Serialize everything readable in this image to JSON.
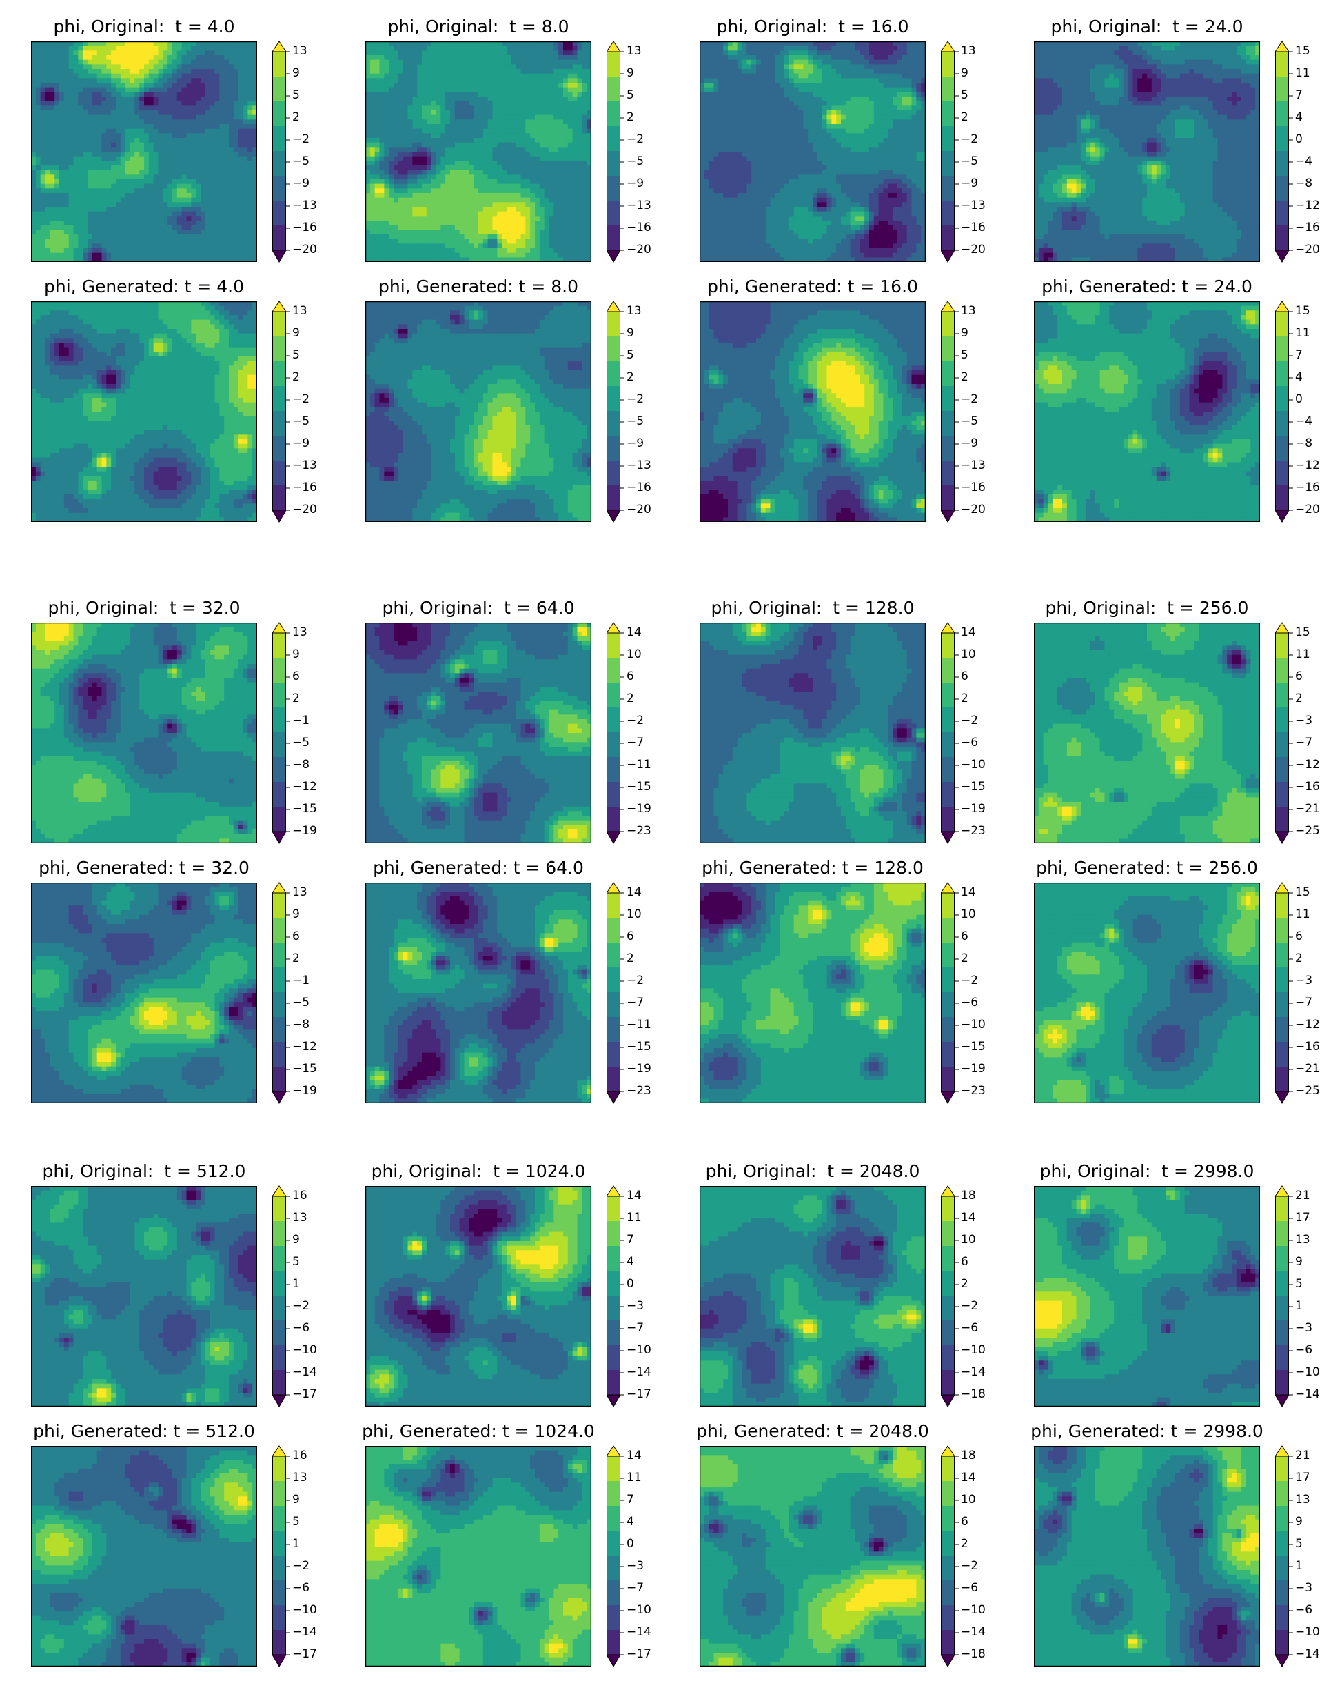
{
  "colors": {
    "palette": [
      "#440154",
      "#482878",
      "#3e4a89",
      "#31688e",
      "#26828e",
      "#1f9e89",
      "#35b779",
      "#6ece58",
      "#b5de2b",
      "#fde725"
    ]
  },
  "chart_data": [
    {
      "type": "heatmap",
      "title": "phi, Original:  t = 4.0",
      "colorbar_ticks": [
        "13",
        "9",
        "5",
        "2",
        "−2",
        "−5",
        "−9",
        "−13",
        "−16",
        "−20"
      ]
    },
    {
      "type": "heatmap",
      "title": "phi, Original:  t = 8.0",
      "colorbar_ticks": [
        "13",
        "9",
        "5",
        "2",
        "−2",
        "−5",
        "−9",
        "−13",
        "−16",
        "−20"
      ]
    },
    {
      "type": "heatmap",
      "title": "phi, Original:  t = 16.0",
      "colorbar_ticks": [
        "13",
        "9",
        "5",
        "2",
        "−2",
        "−5",
        "−9",
        "−13",
        "−16",
        "−20"
      ]
    },
    {
      "type": "heatmap",
      "title": "phi, Original:  t = 24.0",
      "colorbar_ticks": [
        "15",
        "11",
        "7",
        "4",
        "0",
        "−4",
        "−8",
        "−12",
        "−16",
        "−20"
      ]
    },
    {
      "type": "heatmap",
      "title": "phi, Generated: t = 4.0",
      "colorbar_ticks": [
        "13",
        "9",
        "5",
        "2",
        "−2",
        "−5",
        "−9",
        "−13",
        "−16",
        "−20"
      ]
    },
    {
      "type": "heatmap",
      "title": "phi, Generated: t = 8.0",
      "colorbar_ticks": [
        "13",
        "9",
        "5",
        "2",
        "−2",
        "−5",
        "−9",
        "−13",
        "−16",
        "−20"
      ]
    },
    {
      "type": "heatmap",
      "title": "phi, Generated: t = 16.0",
      "colorbar_ticks": [
        "13",
        "9",
        "5",
        "2",
        "−2",
        "−5",
        "−9",
        "−13",
        "−16",
        "−20"
      ]
    },
    {
      "type": "heatmap",
      "title": "phi, Generated: t = 24.0",
      "colorbar_ticks": [
        "15",
        "11",
        "7",
        "4",
        "0",
        "−4",
        "−8",
        "−12",
        "−16",
        "−20"
      ]
    },
    {
      "type": "heatmap",
      "title": "phi, Original:  t = 32.0",
      "colorbar_ticks": [
        "13",
        "9",
        "6",
        "2",
        "−1",
        "−5",
        "−8",
        "−12",
        "−15",
        "−19"
      ]
    },
    {
      "type": "heatmap",
      "title": "phi, Original:  t = 64.0",
      "colorbar_ticks": [
        "14",
        "10",
        "6",
        "2",
        "−2",
        "−7",
        "−11",
        "−15",
        "−19",
        "−23"
      ]
    },
    {
      "type": "heatmap",
      "title": "phi, Original:  t = 128.0",
      "colorbar_ticks": [
        "14",
        "10",
        "6",
        "2",
        "−2",
        "−6",
        "−10",
        "−15",
        "−19",
        "−23"
      ]
    },
    {
      "type": "heatmap",
      "title": "phi, Original:  t = 256.0",
      "colorbar_ticks": [
        "15",
        "11",
        "6",
        "2",
        "−3",
        "−7",
        "−12",
        "−16",
        "−21",
        "−25"
      ]
    },
    {
      "type": "heatmap",
      "title": "phi, Generated: t = 32.0",
      "colorbar_ticks": [
        "13",
        "9",
        "6",
        "2",
        "−1",
        "−5",
        "−8",
        "−12",
        "−15",
        "−19"
      ]
    },
    {
      "type": "heatmap",
      "title": "phi, Generated: t = 64.0",
      "colorbar_ticks": [
        "14",
        "10",
        "6",
        "2",
        "−2",
        "−7",
        "−11",
        "−15",
        "−19",
        "−23"
      ]
    },
    {
      "type": "heatmap",
      "title": "phi, Generated: t = 128.0",
      "colorbar_ticks": [
        "14",
        "10",
        "6",
        "2",
        "−2",
        "−6",
        "−10",
        "−15",
        "−19",
        "−23"
      ]
    },
    {
      "type": "heatmap",
      "title": "phi, Generated: t = 256.0",
      "colorbar_ticks": [
        "15",
        "11",
        "6",
        "2",
        "−3",
        "−7",
        "−12",
        "−16",
        "−21",
        "−25"
      ]
    },
    {
      "type": "heatmap",
      "title": "phi, Original:  t = 512.0",
      "colorbar_ticks": [
        "16",
        "13",
        "9",
        "5",
        "1",
        "−2",
        "−6",
        "−10",
        "−14",
        "−17"
      ]
    },
    {
      "type": "heatmap",
      "title": "phi, Original:  t = 1024.0",
      "colorbar_ticks": [
        "14",
        "11",
        "7",
        "4",
        "0",
        "−3",
        "−7",
        "−10",
        "−14",
        "−17"
      ]
    },
    {
      "type": "heatmap",
      "title": "phi, Original:  t = 2048.0",
      "colorbar_ticks": [
        "18",
        "14",
        "10",
        "6",
        "2",
        "−2",
        "−6",
        "−10",
        "−14",
        "−18"
      ]
    },
    {
      "type": "heatmap",
      "title": "phi, Original:  t = 2998.0",
      "colorbar_ticks": [
        "21",
        "17",
        "13",
        "9",
        "5",
        "1",
        "−3",
        "−6",
        "−10",
        "−14"
      ]
    },
    {
      "type": "heatmap",
      "title": "phi, Generated: t = 512.0",
      "colorbar_ticks": [
        "16",
        "13",
        "9",
        "5",
        "1",
        "−2",
        "−6",
        "−10",
        "−14",
        "−17"
      ]
    },
    {
      "type": "heatmap",
      "title": "phi, Generated: t = 1024.0",
      "colorbar_ticks": [
        "14",
        "11",
        "7",
        "4",
        "0",
        "−3",
        "−7",
        "−10",
        "−14",
        "−17"
      ]
    },
    {
      "type": "heatmap",
      "title": "phi, Generated: t = 2048.0",
      "colorbar_ticks": [
        "18",
        "14",
        "10",
        "6",
        "2",
        "−2",
        "−6",
        "−10",
        "−14",
        "−18"
      ]
    },
    {
      "type": "heatmap",
      "title": "phi, Generated: t = 2998.0",
      "colorbar_ticks": [
        "21",
        "17",
        "13",
        "9",
        "5",
        "1",
        "−3",
        "−6",
        "−10",
        "−14"
      ]
    }
  ]
}
